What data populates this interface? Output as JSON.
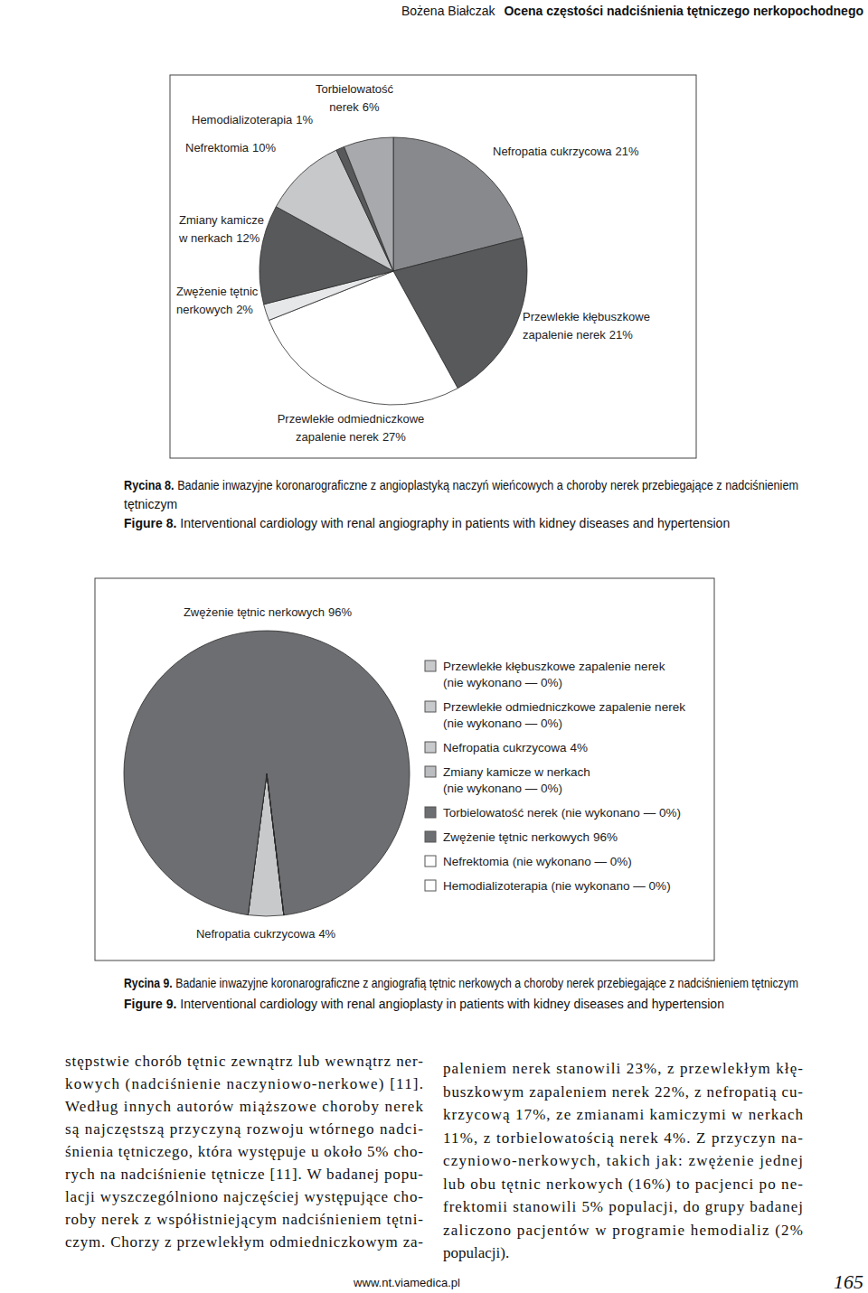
{
  "header": {
    "author": "Bożena Białczak",
    "title": "Ocena częstości nadciśnienia tętniczego nerkopochodnego"
  },
  "chart_data": [
    {
      "type": "pie",
      "categories": [
        "Nefropatia cukrzycowa",
        "Przewlekłe kłębuszkowe zapalenie nerek",
        "Przewlekłe odmiedniczkowe zapalenie nerek",
        "Zwężenie tętnic nerkowych",
        "Zmiany kamicze w nerkach",
        "Nefrektomia",
        "Hemodializoterapia",
        "Torbielowatość nerek"
      ],
      "values": [
        21,
        21,
        27,
        2,
        12,
        10,
        1,
        6
      ],
      "value_labels": [
        "21%",
        "21%",
        "27%",
        "2%",
        "12%",
        "10%",
        "1%",
        "6%"
      ],
      "colors": [
        "#88898c",
        "#58595b",
        "#ffffff",
        "#e6e7e8",
        "#58595b",
        "#c7c8ca",
        "#58595b",
        "#a7a9ac"
      ],
      "data_labels": true
    },
    {
      "type": "pie",
      "categories": [
        "Przewlekłe kłębuszkowe zapalenie nerek",
        "Przewlekłe odmiedniczkowe zapalenie nerek",
        "Nefropatia cukrzycowa",
        "Zmiany kamicze w nerkach",
        "Torbielowatość nerek",
        "Zwężenie tętnic nerkowych",
        "Nefrektomia",
        "Hemodializoterapia"
      ],
      "values": [
        0,
        0,
        4,
        0,
        0,
        96,
        0,
        0
      ],
      "value_labels": [
        "(nie wykonano — 0%)",
        "(nie wykonano — 0%)",
        "4%",
        "(nie wykonano — 0%)",
        "(nie wykonano — 0%)",
        "96%",
        "(nie wykonano — 0%)",
        "(nie wykonano — 0%)"
      ],
      "colors": [
        "#c8c9cb",
        "#c8c9cb",
        "#c8c9cb",
        "#bcbdc0",
        "#6d6e71",
        "#6d6e71",
        "#ffffff",
        "#ffffff"
      ],
      "data_labels": true,
      "legend": "right"
    }
  ],
  "captions": [
    {
      "pl_label": "Rycina 8.",
      "pl_text": "Badanie inwazyjne koronarograficzne z angioplastyką naczyń wieńcowych a choroby nerek przebiegające z nadciśnieniem tętniczym",
      "en_label": "Figure 8.",
      "en_text": "Interventional cardiology with renal angiography in patients with kidney diseases and hypertension"
    },
    {
      "pl_label": "Rycina 9.",
      "pl_text": "Badanie inwazyjne koronarograficzne z angiografią tętnic nerkowych a choroby nerek przebiegające z nadciśnieniem tętniczym",
      "en_label": "Figure 9.",
      "en_text": "Interventional cardiology with renal angioplasty in patients with kidney diseases and hypertension"
    }
  ],
  "body": {
    "columns": [
      {
        "lines": [
          "stępstwie chorób tętnic zewnątrz lub wewnątrz ner-",
          "kowych (nadciśnienie naczyniowo-nerkowe) [11].",
          "Według innych autorów miąższowe choroby nerek",
          "są najczęstszą przyczyną rozwoju wtórnego nadci-",
          "śnienia tętniczego, która występuje u około 5% cho-",
          "rych na nadciśnienie tętnicze [11]. W badanej popu-",
          "lacji wyszczególniono najczęściej występujące cho-",
          "roby nerek z współistniejącym nadciśnieniem tętni-",
          "czym. Chorzy z przewlekłym odmiedniczkowym za-"
        ]
      },
      {
        "lines": [
          "paleniem nerek stanowili 23%, z przewlekłym kłę-",
          "buszkowym zapaleniem nerek 22%, z nefropatią cu-",
          "krzycową 17%, ze zmianami kamiczymi w nerkach",
          "11%, z torbielowatością nerek 4%. Z przyczyn na-",
          "czyniowo-nerkowych, takich jak: zwężenie jednej",
          "lub obu tętnic nerkowych (16%) to pacjenci po ne-",
          "frektomii stanowili 5% populacji, do grupy badanej",
          "zaliczono pacjentów w programie hemodializ (2%",
          "populacji)."
        ]
      }
    ]
  },
  "footer": {
    "url": "www.nt.viamedica.pl",
    "page": "165"
  }
}
